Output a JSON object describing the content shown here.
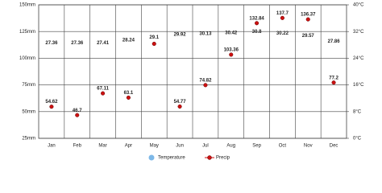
{
  "chart_data": {
    "type": "climate",
    "categories": [
      "Jan",
      "Feb",
      "Mar",
      "Apr",
      "May",
      "Jun",
      "Jul",
      "Aug",
      "Sep",
      "Oct",
      "Nov",
      "Dec"
    ],
    "series": [
      {
        "name": "Temperature",
        "color": "#7db8e8",
        "axis": "y2",
        "values": [
          27.36,
          27.36,
          27.41,
          28.24,
          29.1,
          29.92,
          30.13,
          30.42,
          30.8,
          30.22,
          29.57,
          27.86
        ]
      },
      {
        "name": "Precip",
        "color": "#cc1111",
        "values": [
          54.62,
          46.7,
          67.11,
          63.1,
          113.5,
          54.77,
          74.82,
          103.36,
          132.84,
          137.7,
          136.37,
          77.2
        ],
        "value_labels": [
          "54.62",
          "46.7",
          "67.11",
          "63.1",
          null,
          "54.77",
          "74.82",
          "103.36",
          "132.84",
          "137.7",
          "136.37",
          "77.2"
        ]
      }
    ],
    "ylim": [
      25,
      150
    ],
    "yticks": [
      {
        "value": 25,
        "label": "25mm"
      },
      {
        "value": 50,
        "label": "50mm"
      },
      {
        "value": 75,
        "label": "75mm"
      },
      {
        "value": 100,
        "label": "100mm"
      },
      {
        "value": 125,
        "label": "125mm"
      },
      {
        "value": 150,
        "label": "150mm"
      }
    ],
    "y2lim": [
      0,
      40
    ],
    "y2ticks": [
      {
        "value": 0,
        "label": "0°C"
      },
      {
        "value": 8,
        "label": "8°C"
      },
      {
        "value": 16,
        "label": "16°C"
      },
      {
        "value": 24,
        "label": "24°C"
      },
      {
        "value": 32,
        "label": "32°C"
      },
      {
        "value": 40,
        "label": "40°C"
      }
    ],
    "grid": true
  }
}
